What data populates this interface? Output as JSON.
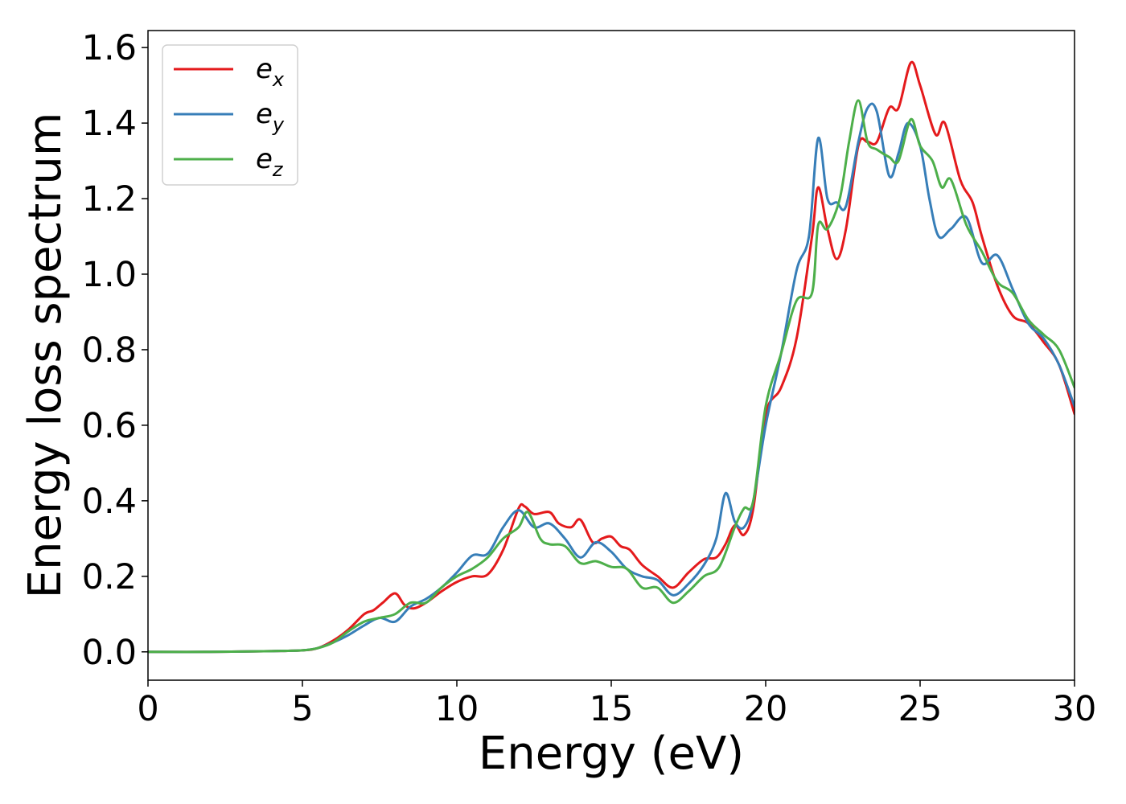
{
  "chart_data": {
    "type": "line",
    "xlabel": "Energy (eV)",
    "ylabel": "Energy loss spectrum",
    "xlim": [
      0,
      30
    ],
    "ylim": [
      -0.075,
      1.645
    ],
    "xticks": [
      0,
      5,
      10,
      15,
      20,
      25,
      30
    ],
    "xtick_labels": [
      "0",
      "5",
      "10",
      "15",
      "20",
      "25",
      "30"
    ],
    "yticks": [
      0.0,
      0.2,
      0.4,
      0.6,
      0.8,
      1.0,
      1.2,
      1.4,
      1.6
    ],
    "ytick_labels": [
      "0.0",
      "0.2",
      "0.4",
      "0.6",
      "0.8",
      "1.0",
      "1.2",
      "1.4",
      "1.6"
    ],
    "grid": false,
    "legend_position": "top-left",
    "series": [
      {
        "name_base": "e",
        "name_sub": "x",
        "color": "#e41a1c",
        "x": [
          0,
          2,
          4,
          5,
          5.5,
          6.0,
          6.5,
          7.0,
          7.3,
          7.6,
          8.0,
          8.3,
          8.6,
          9.0,
          9.5,
          10.0,
          10.5,
          11.0,
          11.5,
          12.0,
          12.2,
          12.5,
          13.0,
          13.3,
          13.7,
          14.0,
          14.4,
          14.7,
          15.0,
          15.3,
          15.6,
          16.0,
          16.5,
          17.0,
          17.5,
          18.0,
          18.4,
          18.7,
          19.0,
          19.3,
          19.6,
          20.0,
          20.5,
          21.0,
          21.5,
          21.7,
          22.0,
          22.3,
          22.6,
          23.0,
          23.3,
          23.6,
          24.0,
          24.3,
          24.7,
          25.0,
          25.5,
          25.8,
          26.3,
          26.7,
          27.0,
          27.5,
          28.0,
          28.5,
          29.0,
          29.5,
          30.0
        ],
        "values": [
          0.0,
          0.0,
          0.002,
          0.004,
          0.01,
          0.03,
          0.06,
          0.1,
          0.11,
          0.13,
          0.155,
          0.125,
          0.115,
          0.13,
          0.16,
          0.185,
          0.2,
          0.205,
          0.27,
          0.38,
          0.385,
          0.365,
          0.37,
          0.34,
          0.33,
          0.35,
          0.29,
          0.3,
          0.305,
          0.28,
          0.27,
          0.23,
          0.2,
          0.17,
          0.21,
          0.245,
          0.25,
          0.285,
          0.335,
          0.31,
          0.38,
          0.63,
          0.7,
          0.83,
          1.1,
          1.23,
          1.12,
          1.04,
          1.12,
          1.34,
          1.35,
          1.35,
          1.44,
          1.44,
          1.56,
          1.5,
          1.37,
          1.4,
          1.25,
          1.19,
          1.1,
          0.97,
          0.89,
          0.87,
          0.82,
          0.76,
          0.63
        ]
      },
      {
        "name_base": "e",
        "name_sub": "y",
        "color": "#377eb8",
        "x": [
          0,
          2,
          4,
          5,
          5.5,
          6.0,
          6.5,
          7.0,
          7.5,
          8.0,
          8.5,
          9.0,
          9.5,
          10.0,
          10.5,
          11.0,
          11.5,
          12.0,
          12.5,
          13.0,
          13.5,
          14.0,
          14.5,
          15.0,
          15.5,
          16.0,
          16.5,
          17.0,
          17.5,
          18.0,
          18.4,
          18.7,
          19.0,
          19.3,
          19.6,
          20.0,
          20.5,
          21.0,
          21.4,
          21.7,
          22.0,
          22.3,
          22.6,
          23.0,
          23.3,
          23.6,
          24.0,
          24.3,
          24.6,
          25.0,
          25.3,
          25.6,
          26.0,
          26.5,
          27.0,
          27.5,
          28.0,
          28.5,
          29.0,
          29.5,
          30.0
        ],
        "values": [
          0.0,
          0.0,
          0.002,
          0.004,
          0.01,
          0.025,
          0.045,
          0.07,
          0.09,
          0.08,
          0.12,
          0.14,
          0.17,
          0.21,
          0.255,
          0.26,
          0.33,
          0.375,
          0.33,
          0.34,
          0.3,
          0.25,
          0.29,
          0.265,
          0.22,
          0.2,
          0.19,
          0.15,
          0.18,
          0.23,
          0.3,
          0.42,
          0.345,
          0.33,
          0.4,
          0.6,
          0.79,
          1.01,
          1.1,
          1.36,
          1.2,
          1.19,
          1.18,
          1.35,
          1.44,
          1.43,
          1.26,
          1.32,
          1.4,
          1.34,
          1.2,
          1.1,
          1.12,
          1.15,
          1.03,
          1.05,
          0.96,
          0.87,
          0.83,
          0.76,
          0.65
        ]
      },
      {
        "name_base": "e",
        "name_sub": "z",
        "color": "#4daf4a",
        "x": [
          0,
          2,
          4,
          5,
          5.5,
          6.0,
          6.5,
          7.0,
          7.5,
          8.0,
          8.5,
          9.0,
          9.5,
          10.0,
          10.5,
          11.0,
          11.5,
          12.0,
          12.3,
          12.7,
          13.0,
          13.5,
          14.0,
          14.5,
          15.0,
          15.5,
          16.0,
          16.5,
          17.0,
          17.5,
          18.0,
          18.5,
          19.0,
          19.3,
          19.6,
          20.0,
          20.5,
          21.0,
          21.5,
          21.7,
          22.0,
          22.4,
          22.7,
          23.0,
          23.3,
          23.6,
          24.0,
          24.3,
          24.7,
          25.0,
          25.4,
          25.7,
          26.0,
          26.5,
          27.0,
          27.5,
          28.0,
          28.5,
          29.0,
          29.5,
          30.0
        ],
        "values": [
          0.0,
          0.0,
          0.002,
          0.004,
          0.01,
          0.025,
          0.055,
          0.08,
          0.09,
          0.1,
          0.13,
          0.13,
          0.17,
          0.2,
          0.22,
          0.25,
          0.3,
          0.33,
          0.37,
          0.3,
          0.285,
          0.28,
          0.235,
          0.24,
          0.225,
          0.22,
          0.17,
          0.17,
          0.13,
          0.16,
          0.2,
          0.225,
          0.33,
          0.38,
          0.4,
          0.65,
          0.79,
          0.93,
          0.95,
          1.13,
          1.12,
          1.2,
          1.35,
          1.46,
          1.35,
          1.33,
          1.31,
          1.3,
          1.41,
          1.34,
          1.3,
          1.23,
          1.25,
          1.13,
          1.06,
          0.98,
          0.95,
          0.88,
          0.84,
          0.8,
          0.7
        ]
      }
    ]
  }
}
